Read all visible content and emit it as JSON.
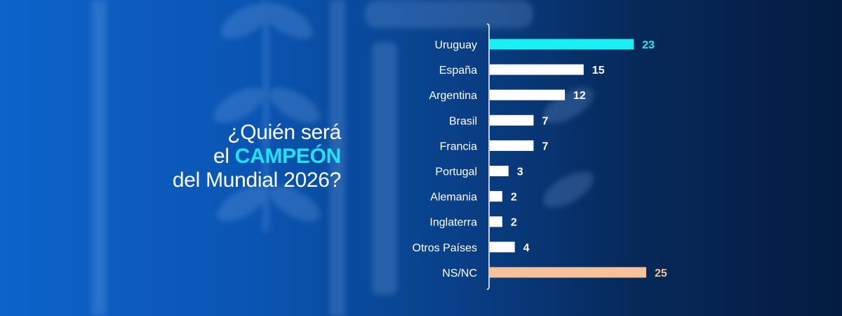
{
  "headline": {
    "line1": "¿Quién será",
    "line2_prefix": "el ",
    "line2_highlight": "CAMPEÓN",
    "line3": "del Mundial 2026?"
  },
  "colors": {
    "highlight_text": "#22e3f3",
    "bar_default": "#ffffff",
    "bar_leader": "#18f0f4",
    "bar_nsnc": "#f7c19a"
  },
  "chart_data": {
    "type": "bar",
    "orientation": "horizontal",
    "categories": [
      "Uruguay",
      "España",
      "Argentina",
      "Brasil",
      "Francia",
      "Portugal",
      "Alemania",
      "Inglaterra",
      "Otros Países",
      "NS/NC"
    ],
    "values": [
      23,
      15,
      12,
      7,
      7,
      3,
      2,
      2,
      4,
      25
    ],
    "value_labels": [
      "23",
      "15",
      "12",
      "7",
      "7",
      "3",
      "2",
      "2",
      "4",
      "25"
    ],
    "bar_colors": [
      "#18f0f4",
      "#ffffff",
      "#ffffff",
      "#ffffff",
      "#ffffff",
      "#ffffff",
      "#ffffff",
      "#ffffff",
      "#ffffff",
      "#f7c19a"
    ],
    "label_colors": [
      "#18f0f4",
      "#ffffff",
      "#ffffff",
      "#ffffff",
      "#ffffff",
      "#ffffff",
      "#ffffff",
      "#ffffff",
      "#ffffff",
      "#f7c19a"
    ],
    "xlim": [
      0,
      25
    ],
    "grid": false,
    "legend": "none"
  }
}
